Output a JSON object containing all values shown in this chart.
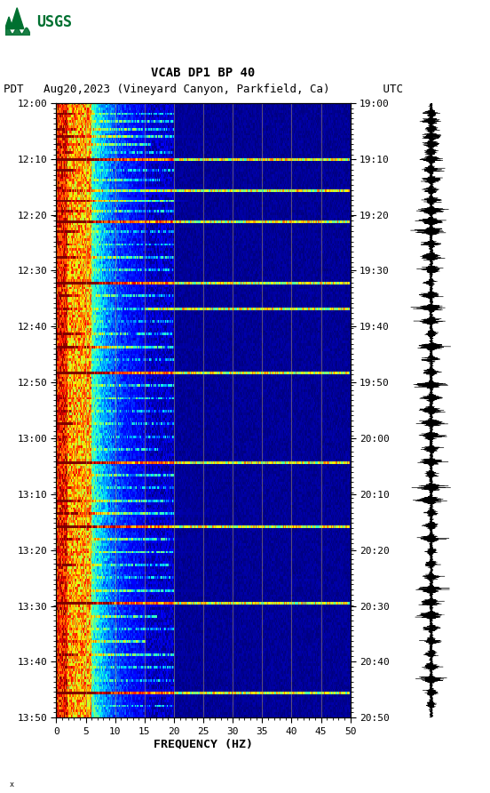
{
  "title_line1": "VCAB DP1 BP 40",
  "title_line2": "PDT   Aug20,2023 (Vineyard Canyon, Parkfield, Ca)        UTC",
  "xlabel": "FREQUENCY (HZ)",
  "freq_min": 0,
  "freq_max": 50,
  "freq_ticks": [
    0,
    5,
    10,
    15,
    20,
    25,
    30,
    35,
    40,
    45,
    50
  ],
  "time_labels_left": [
    "12:00",
    "12:10",
    "12:20",
    "12:30",
    "12:40",
    "12:50",
    "13:00",
    "13:10",
    "13:20",
    "13:30",
    "13:40",
    "13:50"
  ],
  "time_labels_right": [
    "19:00",
    "19:10",
    "19:20",
    "19:30",
    "19:40",
    "19:50",
    "20:00",
    "20:10",
    "20:20",
    "20:30",
    "20:40",
    "20:50"
  ],
  "n_time_steps": 240,
  "n_freq_steps": 300,
  "bg_color": "white",
  "spectrogram_cmap": "jet",
  "fig_width": 5.52,
  "fig_height": 8.92,
  "dpi": 100,
  "usgs_logo_color": "#007030",
  "font_family": "monospace",
  "grid_color": "#b8a060",
  "grid_alpha": 0.6,
  "title1_fontsize": 10,
  "title2_fontsize": 9,
  "tick_fontsize": 8
}
